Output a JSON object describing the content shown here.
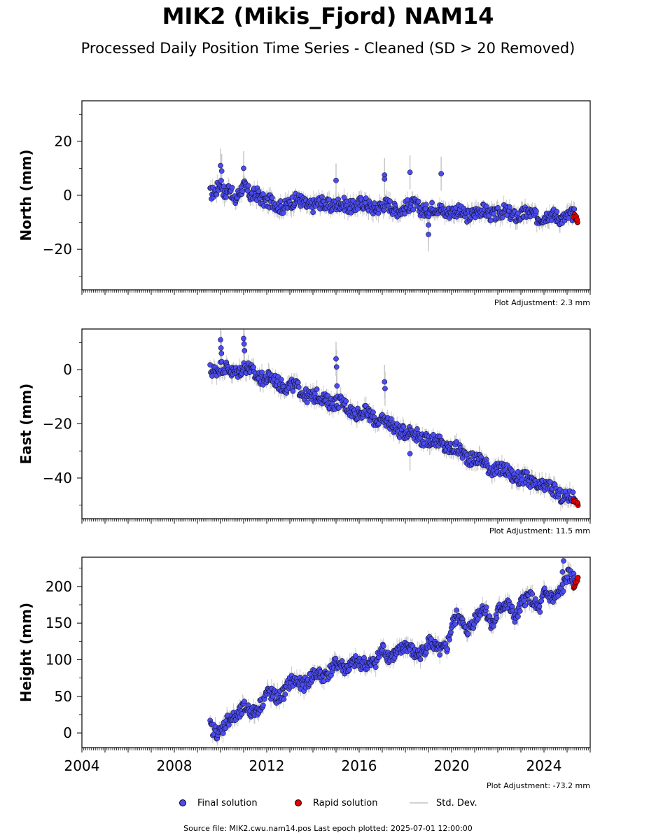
{
  "figure": {
    "title": "MIK2 (Mikis_Fjord) NAM14",
    "subtitle": "Processed Daily Position Time Series - Cleaned (SD > 20 Removed)",
    "source": "Source file: MIK2.cwu.nam14.pos  Last epoch plotted: 2025-07-01 12:00:00"
  },
  "legend": {
    "final": "Final solution",
    "rapid": "Rapid solution",
    "std": "Std. Dev."
  },
  "colors": {
    "final": "#4b4bf0",
    "rapid": "#e00000",
    "std": "#c8c8c8",
    "edge": "#000000"
  },
  "chart_data": [
    {
      "type": "scatter",
      "ylabel": "North (mm)",
      "xlim": [
        2004,
        2026
      ],
      "ylim": [
        -35,
        35
      ],
      "yticks": [
        -20,
        0,
        20
      ],
      "adjustment": "Plot Adjustment: 2.3 mm",
      "series": [
        {
          "role": "final",
          "x": [
            2009.55,
            2009.8,
            2010.0,
            2010.2,
            2010.4,
            2010.6,
            2010.8,
            2011.0,
            2011.3,
            2011.6,
            2012.0,
            2012.5,
            2013.0,
            2013.5,
            2014.0,
            2014.5,
            2015.0,
            2015.5,
            2016.0,
            2016.5,
            2017.0,
            2017.5,
            2018.0,
            2018.5,
            2019.0,
            2019.5,
            2020.0,
            2020.5,
            2021.0,
            2021.5,
            2022.0,
            2022.5,
            2023.0,
            2023.5,
            2024.0,
            2024.5,
            2025.0,
            2025.35
          ],
          "y": [
            1.0,
            2.5,
            5.0,
            -1.0,
            3.0,
            -2.0,
            2.0,
            3.5,
            -1.0,
            1.0,
            -2.5,
            -4.0,
            -3.0,
            -2.0,
            -4.0,
            -3.0,
            -3.5,
            -4.0,
            -3.0,
            -4.5,
            -3.5,
            -5.0,
            -4.5,
            -4.0,
            -5.5,
            -5.0,
            -6.0,
            -7.0,
            -6.5,
            -6.0,
            -7.0,
            -6.5,
            -7.5,
            -7.0,
            -8.0,
            -7.5,
            -8.0,
            -8.0
          ]
        },
        {
          "role": "rapid",
          "x": [
            2025.3,
            2025.38,
            2025.45
          ],
          "y": [
            -7.5,
            -8.5,
            -9.5
          ]
        }
      ],
      "outliers": {
        "x": [
          2010.0,
          2010.05,
          2011.0,
          2015.0,
          2017.1,
          2017.1,
          2018.2,
          2019.0,
          2019.0,
          2019.55
        ],
        "y": [
          11.0,
          9.0,
          10.0,
          5.5,
          7.5,
          6.0,
          8.5,
          -11.0,
          -14.5,
          8.0
        ]
      }
    },
    {
      "type": "scatter",
      "ylabel": "East (mm)",
      "xlim": [
        2004,
        2026
      ],
      "ylim": [
        -55,
        15
      ],
      "yticks": [
        -40,
        -20,
        0
      ],
      "adjustment": "Plot Adjustment: 11.5 mm",
      "series": [
        {
          "role": "final",
          "x": [
            2009.55,
            2010.0,
            2010.5,
            2011.0,
            2011.5,
            2012.0,
            2012.5,
            2013.0,
            2013.5,
            2014.0,
            2014.5,
            2015.0,
            2015.5,
            2016.0,
            2016.5,
            2017.0,
            2017.5,
            2018.0,
            2018.5,
            2019.0,
            2019.5,
            2020.0,
            2020.5,
            2021.0,
            2021.5,
            2022.0,
            2022.5,
            2023.0,
            2023.5,
            2024.0,
            2024.5,
            2025.0,
            2025.35
          ],
          "y": [
            0.0,
            1.0,
            -1.0,
            1.0,
            -2.0,
            -3.0,
            -5.0,
            -6.0,
            -8.0,
            -10.0,
            -11.0,
            -12.0,
            -14.0,
            -16.0,
            -17.0,
            -19.0,
            -21.0,
            -23.0,
            -24.0,
            -26.0,
            -27.0,
            -29.0,
            -31.0,
            -33.0,
            -35.0,
            -37.0,
            -38.0,
            -40.0,
            -42.0,
            -43.0,
            -45.0,
            -47.0,
            -48.0
          ]
        },
        {
          "role": "rapid",
          "x": [
            2025.3,
            2025.38,
            2025.45
          ],
          "y": [
            -48.5,
            -49.0,
            -49.5
          ]
        }
      ],
      "outliers": {
        "x": [
          2010.0,
          2010.02,
          2010.04,
          2011.0,
          2011.02,
          2011.04,
          2015.0,
          2015.02,
          2015.04,
          2017.1,
          2017.12,
          2018.2
        ],
        "y": [
          11.0,
          8.0,
          6.0,
          11.5,
          9.5,
          7.0,
          4.0,
          1.0,
          -6.0,
          -4.5,
          -7.0,
          -31.0
        ]
      }
    },
    {
      "type": "scatter",
      "ylabel": "Height (mm)",
      "xlim": [
        2004,
        2026
      ],
      "ylim": [
        -20,
        240
      ],
      "yticks": [
        0,
        50,
        100,
        150,
        200
      ],
      "xticks": [
        2004,
        2008,
        2012,
        2016,
        2020,
        2024
      ],
      "adjustment": "Plot Adjustment: -73.2 mm",
      "series": [
        {
          "role": "final",
          "x": [
            2009.55,
            2010.0,
            2010.3,
            2010.7,
            2011.0,
            2011.4,
            2011.8,
            2012.0,
            2012.4,
            2012.8,
            2013.0,
            2013.5,
            2014.0,
            2014.4,
            2014.8,
            2015.0,
            2015.4,
            2015.8,
            2016.0,
            2016.4,
            2016.8,
            2017.0,
            2017.3,
            2017.6,
            2018.0,
            2018.4,
            2018.8,
            2019.0,
            2019.4,
            2019.8,
            2020.0,
            2020.3,
            2020.6,
            2021.0,
            2021.4,
            2021.8,
            2022.0,
            2022.4,
            2022.8,
            2023.0,
            2023.4,
            2023.8,
            2024.0,
            2024.4,
            2024.8,
            2025.0,
            2025.35
          ],
          "y": [
            10,
            0,
            15,
            25,
            35,
            25,
            45,
            55,
            45,
            60,
            70,
            65,
            80,
            75,
            90,
            95,
            85,
            100,
            95,
            90,
            105,
            115,
            100,
            110,
            120,
            105,
            115,
            125,
            110,
            120,
            145,
            160,
            140,
            155,
            170,
            150,
            165,
            175,
            160,
            175,
            185,
            170,
            190,
            180,
            200,
            215,
            205
          ]
        },
        {
          "role": "rapid",
          "x": [
            2025.3,
            2025.38,
            2025.45
          ],
          "y": [
            200,
            205,
            210
          ]
        }
      ],
      "outliers": {
        "x": [
          2024.8,
          2024.85
        ],
        "y": [
          220,
          235
        ]
      }
    }
  ]
}
